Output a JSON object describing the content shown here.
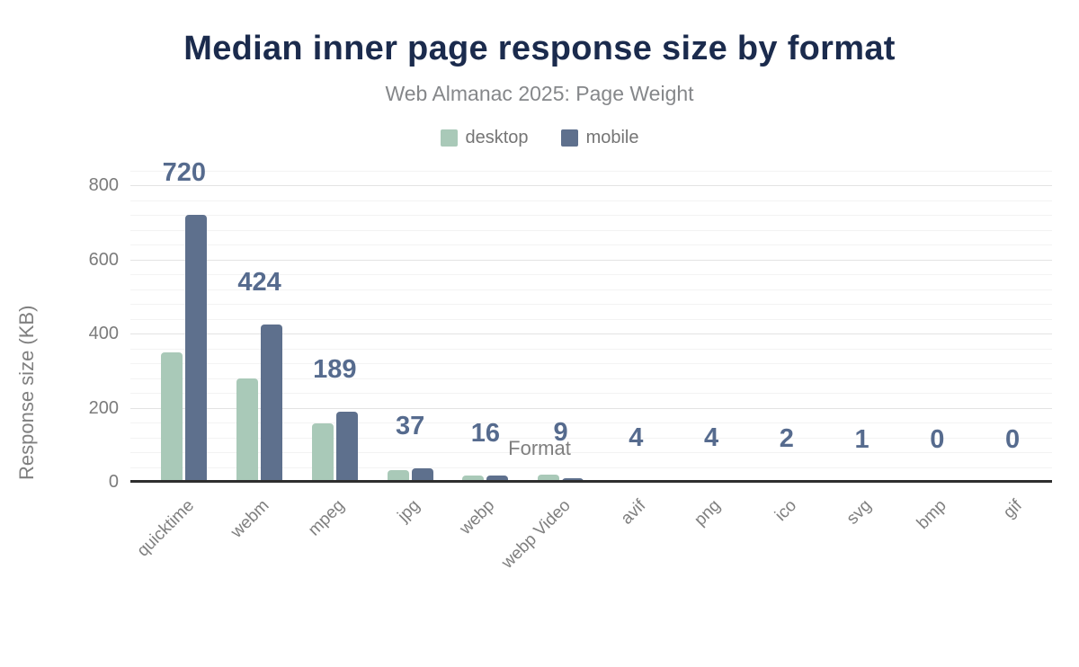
{
  "header": {
    "title": "Median inner page response size by format",
    "subtitle": "Web Almanac 2025: Page Weight"
  },
  "colors": {
    "title": "#1b2b4d",
    "subtitle": "#85878a",
    "legend_text": "#757575",
    "desktop": "#a9c9b8",
    "mobile": "#5e708d",
    "bar_label": "#566b8e",
    "axis_text": "#7f7f7f",
    "ytick_text": "#7b7b7b",
    "major_grid": "#e3e3e3",
    "minor_grid": "#f3f3f3",
    "axis_line": "#2e2e2e"
  },
  "chart_data": {
    "type": "bar",
    "title": "Median inner page response size by format",
    "subtitle": "Web Almanac 2025: Page Weight",
    "xlabel": "Format",
    "ylabel": "Response size (KB)",
    "ylim": [
      0,
      800
    ],
    "yticks": [
      0,
      200,
      400,
      600,
      800
    ],
    "minor_grid_step": 40,
    "grid": true,
    "legend_position": "top",
    "categories": [
      "quicktime",
      "webm",
      "mpeg",
      "jpg",
      "webp",
      "webp Video",
      "avif",
      "png",
      "ico",
      "svg",
      "bmp",
      "gif"
    ],
    "series": [
      {
        "name": "desktop",
        "values": [
          350,
          280,
          158,
          31,
          17,
          20,
          6,
          6,
          2,
          1,
          0,
          0
        ]
      },
      {
        "name": "mobile",
        "values": [
          720,
          424,
          189,
          37,
          16,
          9,
          4,
          4,
          2,
          1,
          0,
          0
        ]
      }
    ],
    "bar_labels": [
      "720",
      "424",
      "189",
      "37",
      "16",
      "9",
      "4",
      "4",
      "2",
      "1",
      "0",
      "0"
    ]
  }
}
